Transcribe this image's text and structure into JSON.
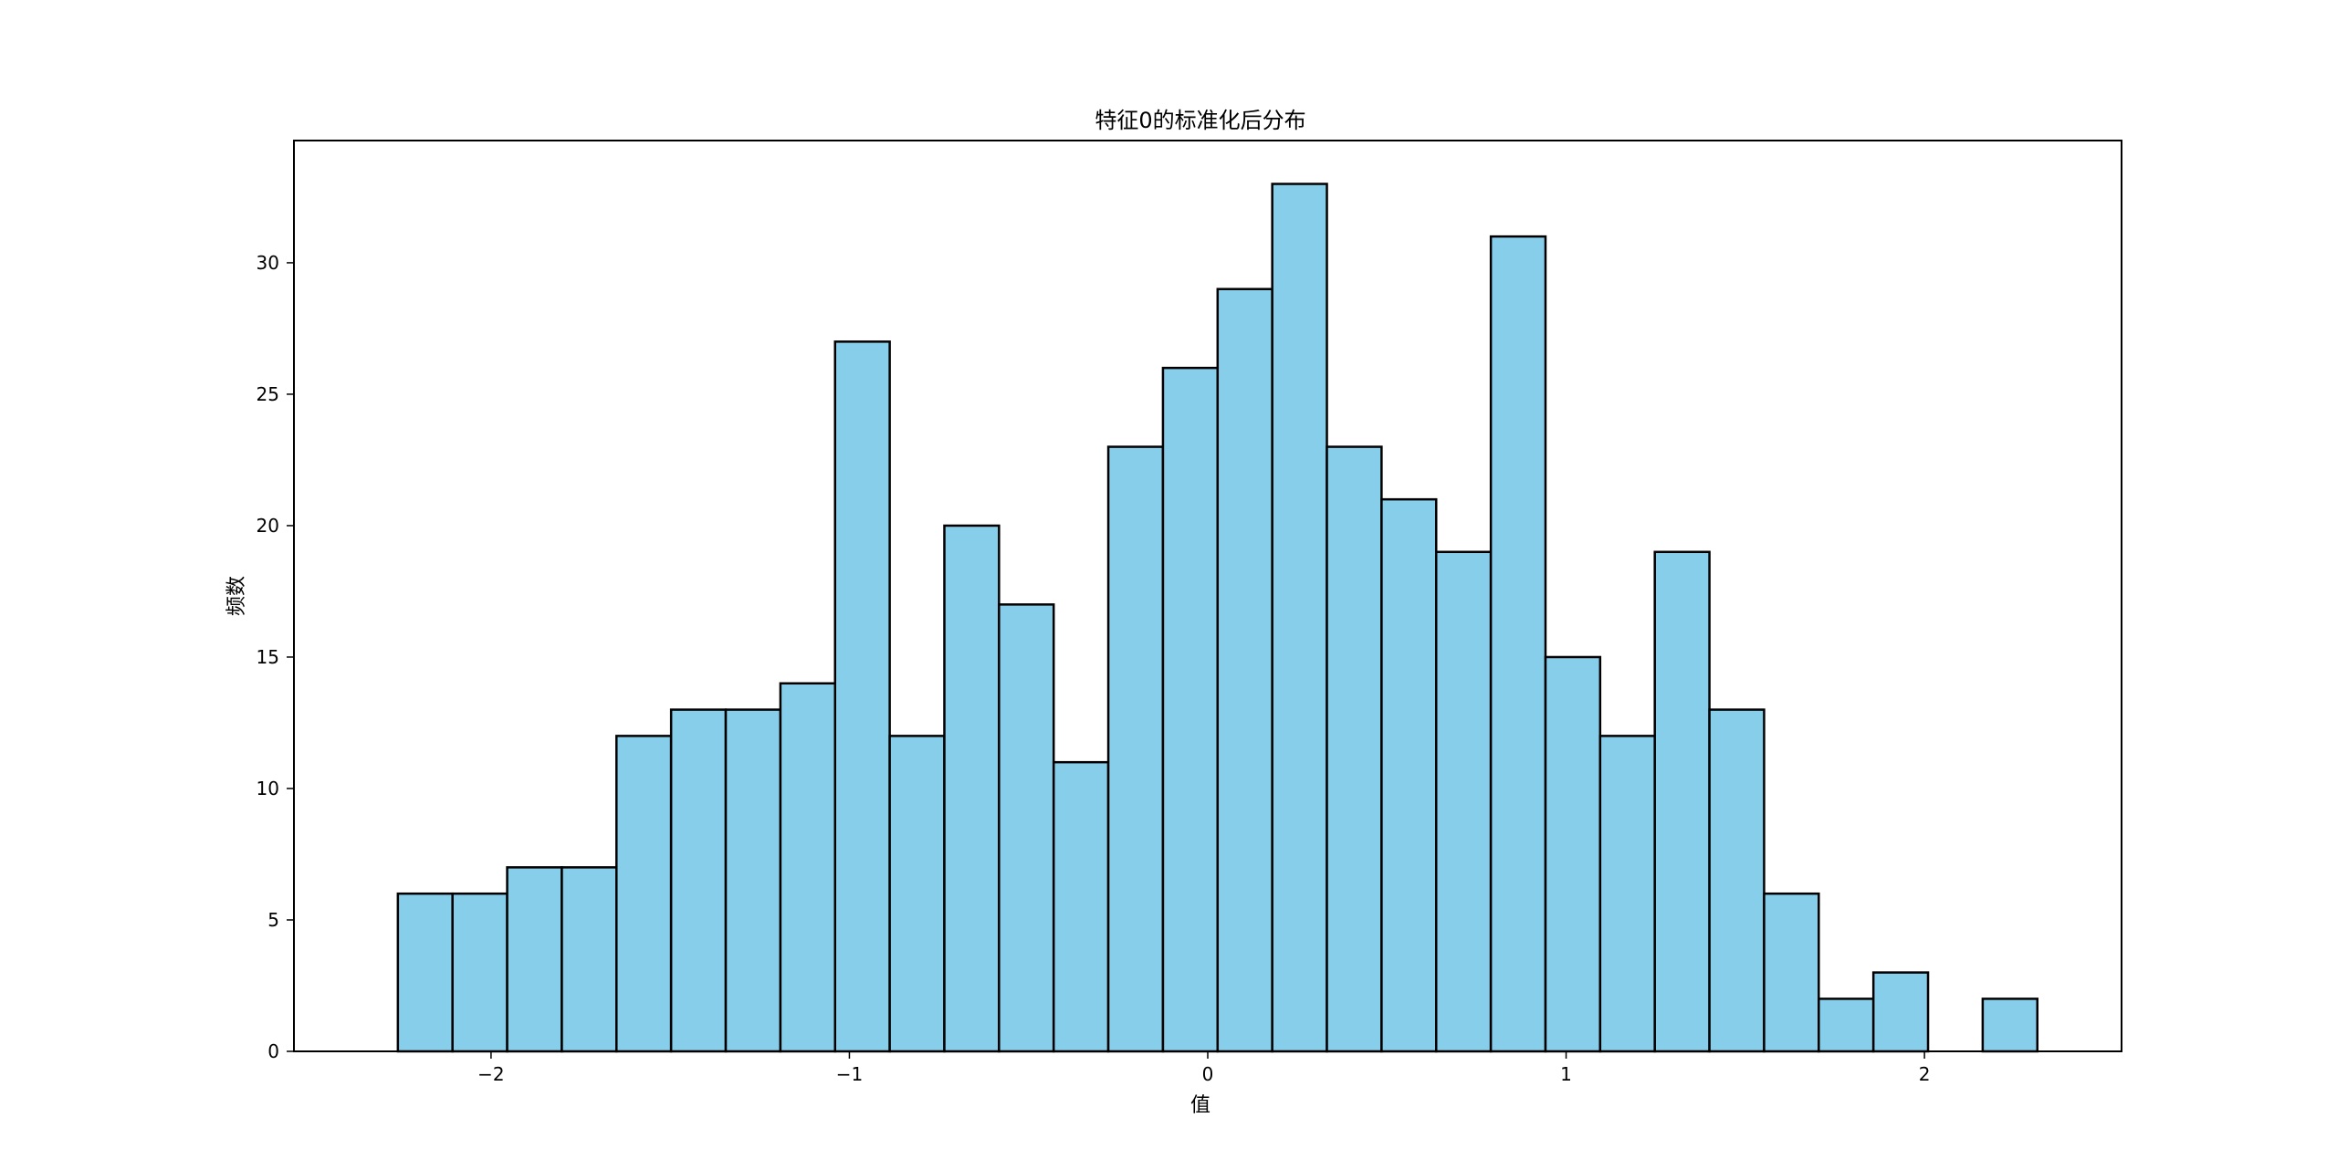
{
  "chart_data": {
    "type": "bar",
    "title": "特征0的标准化后分布",
    "xlabel": "值",
    "ylabel": "频数",
    "xlim": [
      -2.55,
      2.55
    ],
    "ylim": [
      0,
      34.65
    ],
    "xticks": [
      -2,
      -1,
      0,
      1,
      2
    ],
    "xtick_labels": [
      "−2",
      "−1",
      "0",
      "1",
      "2"
    ],
    "yticks": [
      0,
      5,
      10,
      15,
      20,
      25,
      30
    ],
    "ytick_labels": [
      "0",
      "5",
      "10",
      "15",
      "20",
      "25",
      "30"
    ],
    "grid": false,
    "bar_color": "#87ceeb",
    "edge_color": "#000000",
    "bin_start": -2.26,
    "bin_width": 0.1525,
    "values": [
      6,
      6,
      7,
      7,
      12,
      13,
      13,
      14,
      27,
      12,
      20,
      17,
      11,
      23,
      26,
      29,
      33,
      23,
      21,
      19,
      31,
      15,
      12,
      19,
      13,
      6,
      2,
      3,
      0,
      2
    ]
  }
}
